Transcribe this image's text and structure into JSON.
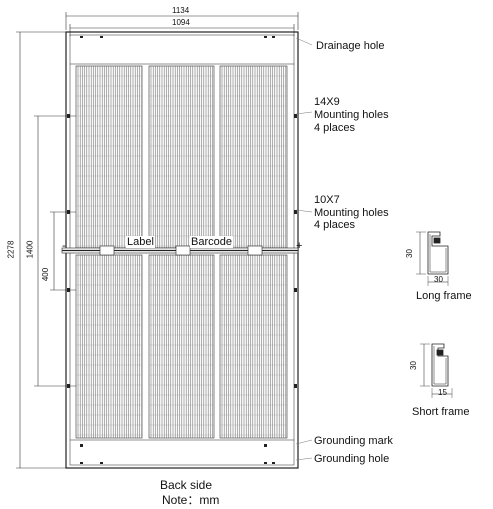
{
  "panel": {
    "dim_overall_width": "1134",
    "dim_inner_width": "1094",
    "dim_overall_length": "2278",
    "dim_mount_spacing_outer": "1400",
    "dim_mount_spacing_inner": "400",
    "label_text": "Label",
    "barcode_text": "Barcode",
    "minus_sign": "-",
    "plus_sign": "+"
  },
  "callouts": {
    "drainage_hole": "Drainage hole",
    "mounting_outer_l1": "14X9",
    "mounting_outer_l2": "Mounting holes",
    "mounting_outer_l3": "4 places",
    "mounting_inner_l1": "10X7",
    "mounting_inner_l2": "Mounting holes",
    "mounting_inner_l3": "4 places",
    "grounding_mark": "Grounding mark",
    "grounding_hole": "Grounding hole"
  },
  "long_frame": {
    "height": "30",
    "width": "30",
    "caption": "Long frame"
  },
  "short_frame": {
    "height": "30",
    "width": "15",
    "caption": "Short frame"
  },
  "footer": {
    "line1": "Back side",
    "line2": "Note：mm"
  }
}
